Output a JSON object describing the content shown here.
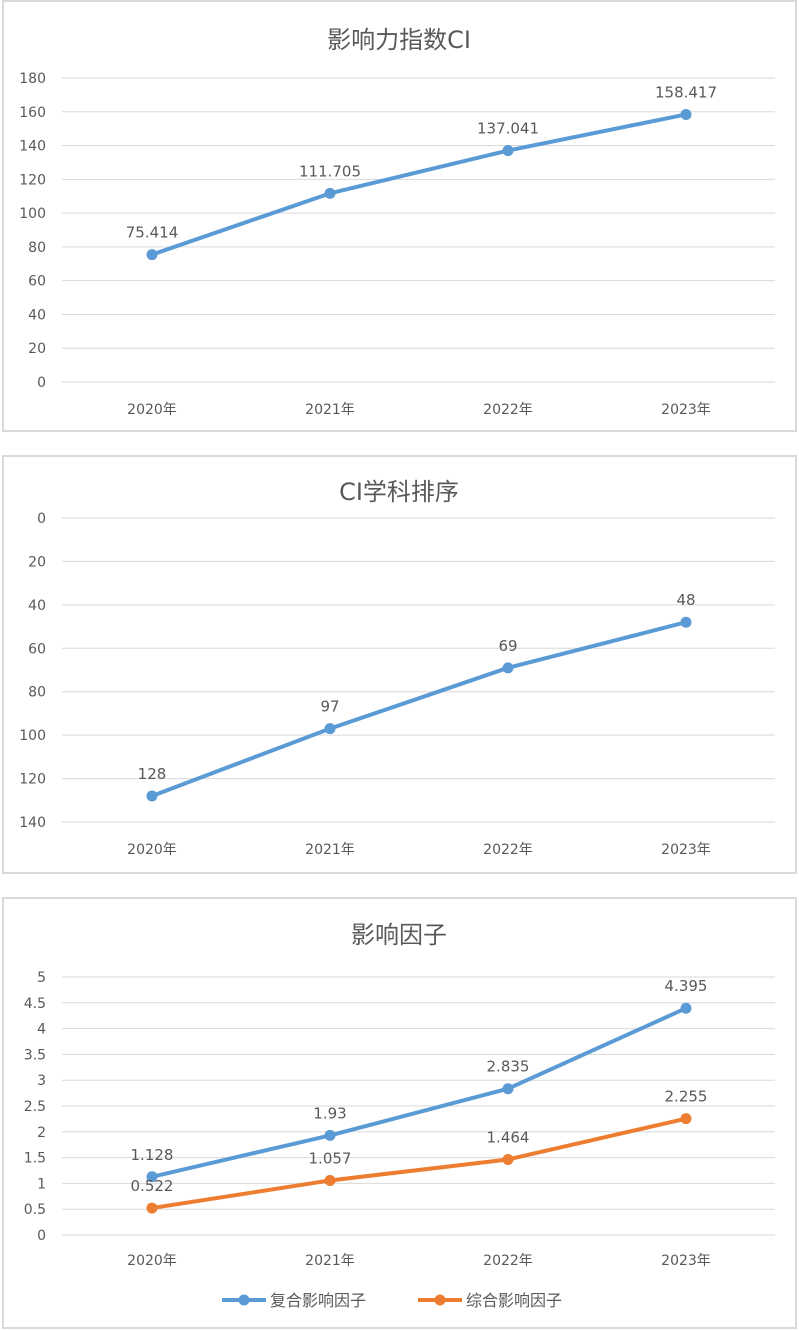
{
  "chart_data": [
    {
      "type": "line",
      "title": "影响力指数CI",
      "categories": [
        "2020年",
        "2021年",
        "2022年",
        "2023年"
      ],
      "series": [
        {
          "values": [
            75.414,
            111.705,
            137.041,
            158.417
          ],
          "labels": [
            "75.414",
            "111.705",
            "137.041",
            "158.417"
          ],
          "color": "#5b9bd5"
        }
      ],
      "ylim": [
        0,
        180
      ],
      "ystep": 20,
      "y_reversed": false,
      "grid": true,
      "legend": "none"
    },
    {
      "type": "line",
      "title": "CI学科排序",
      "categories": [
        "2020年",
        "2021年",
        "2022年",
        "2023年"
      ],
      "series": [
        {
          "values": [
            128,
            97,
            69,
            48
          ],
          "labels": [
            "128",
            "97",
            "69",
            "48"
          ],
          "color": "#5b9bd5"
        }
      ],
      "ylim": [
        0,
        140
      ],
      "ystep": 20,
      "y_reversed": true,
      "grid": true,
      "legend": "none"
    },
    {
      "type": "line",
      "title": "影响因子",
      "categories": [
        "2020年",
        "2021年",
        "2022年",
        "2023年"
      ],
      "series": [
        {
          "name": "复合影响因子",
          "values": [
            1.128,
            1.93,
            2.835,
            4.395
          ],
          "labels": [
            "1.128",
            "1.93",
            "2.835",
            "4.395"
          ],
          "color": "#5b9bd5"
        },
        {
          "name": "综合影响因子",
          "values": [
            0.522,
            1.057,
            1.464,
            2.255
          ],
          "labels": [
            "0.522",
            "1.057",
            "1.464",
            "2.255"
          ],
          "color": "#ed7d31"
        }
      ],
      "ylim": [
        0,
        5
      ],
      "ystep": 0.5,
      "y_reversed": false,
      "grid": true,
      "legend": "bottom"
    }
  ]
}
